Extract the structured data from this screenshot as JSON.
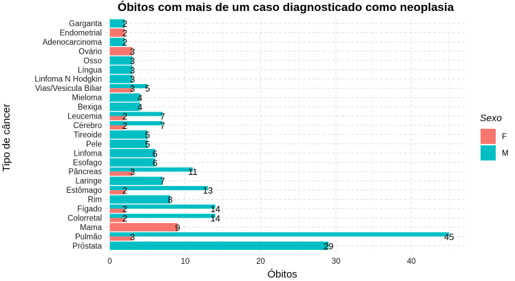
{
  "chart_data": {
    "type": "bar",
    "orientation": "horizontal",
    "title": "Óbitos com mais de um caso diagnosticado como neoplasia",
    "xlabel": "Óbitos",
    "ylabel": "Tipo de câncer",
    "xlim": [
      0,
      47
    ],
    "xticks": [
      0,
      10,
      20,
      30,
      40
    ],
    "grid": true,
    "legend": {
      "title": "Sexo",
      "position": "right"
    },
    "categories": [
      "Garganta",
      "Endometrial",
      "Adenocarcinoma",
      "Ovário",
      "Osso",
      "Língua",
      "Linfoma N Hodgkin",
      "Vias/Vesicula Biliar",
      "Mieloma",
      "Bexiga",
      "Leucemia",
      "Cérebro",
      "Tireoide",
      "Pele",
      "Linfoma",
      "Esofago",
      "Pâncreas",
      "Laringe",
      "Estômago",
      "Rim",
      "Fígado",
      "Colorretal",
      "Mama",
      "Pulmão",
      "Próstata"
    ],
    "series": [
      {
        "name": "F",
        "color": "#F8766D",
        "values": [
          null,
          2,
          null,
          3,
          null,
          null,
          null,
          3,
          null,
          null,
          2,
          2,
          null,
          null,
          null,
          null,
          3,
          null,
          2,
          null,
          2,
          2,
          9,
          3,
          null
        ]
      },
      {
        "name": "M",
        "color": "#00BFC4",
        "values": [
          2,
          null,
          2,
          null,
          3,
          3,
          3,
          5,
          4,
          4,
          7,
          7,
          5,
          5,
          6,
          6,
          11,
          7,
          13,
          8,
          14,
          14,
          null,
          45,
          29
        ]
      }
    ]
  }
}
